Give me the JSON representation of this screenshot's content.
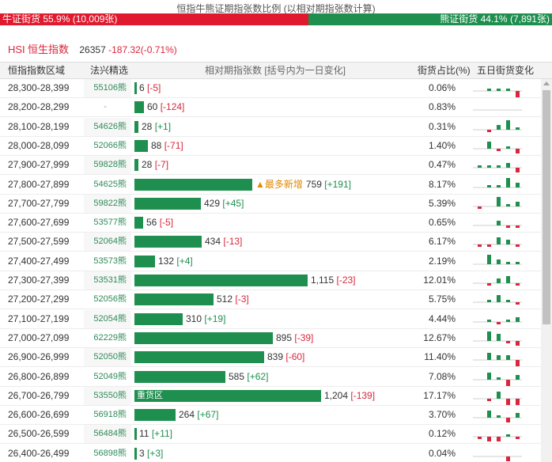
{
  "title": "恒指牛熊证期指张数比例 (以相对期指张数计算)",
  "ratio": {
    "bull": {
      "label": "牛证街货",
      "pct": "55.9%",
      "count": "(10,009张)",
      "fraction": 0.559,
      "color": "#e0192e"
    },
    "bear": {
      "label": "熊证街货",
      "pct": "44.1%",
      "count": "(7,891张)",
      "fraction": 0.441,
      "color": "#1e8f4e"
    }
  },
  "index": {
    "code": "HSI",
    "name": "恒生指数",
    "value": "26357",
    "change": "-187.32(-0.71%)"
  },
  "table": {
    "headers": {
      "range": "恒指指数区域",
      "issuer": "法兴精选",
      "bars": "相对期指张数 [括号内为一日变化]",
      "pct": "街货占比(%)",
      "change": "五日街货变化"
    },
    "bar_max": 1204,
    "rows": [
      {
        "range": "28,300-28,399",
        "issuer": "55106熊",
        "qty": 6,
        "qty_label": "6",
        "delta": "[-5]",
        "delta_sign": "neg",
        "pct": "0.06%",
        "spark": [
          0,
          1,
          1,
          1,
          -3
        ]
      },
      {
        "range": "28,200-28,299",
        "issuer": "-",
        "qty": 60,
        "qty_label": "60",
        "delta": "[-124]",
        "delta_sign": "neg",
        "pct": "0.83%",
        "spark": [
          0,
          0,
          0,
          0,
          0
        ]
      },
      {
        "range": "28,100-28,199",
        "issuer": "54626熊",
        "qty": 28,
        "qty_label": "28",
        "delta": "[+1]",
        "delta_sign": "pos",
        "pct": "0.31%",
        "spark": [
          0,
          -1,
          2,
          4,
          1
        ]
      },
      {
        "range": "28,000-28,099",
        "issuer": "52066熊",
        "qty": 88,
        "qty_label": "88",
        "delta": "[-71]",
        "delta_sign": "neg",
        "pct": "1.40%",
        "spark": [
          0,
          3,
          -1,
          1,
          -2
        ]
      },
      {
        "range": "27,900-27,999",
        "issuer": "59828熊",
        "qty": 28,
        "qty_label": "28",
        "delta": "[-7]",
        "delta_sign": "neg",
        "pct": "0.47%",
        "spark": [
          1,
          1,
          1,
          2,
          -2
        ]
      },
      {
        "range": "27,800-27,899",
        "issuer": "54625熊",
        "qty": 759,
        "qty_label": "759",
        "delta": "[+191]",
        "delta_sign": "pos",
        "pct": "8.17%",
        "spark": [
          0,
          1,
          1,
          4,
          2
        ],
        "tag": "▲最多新增"
      },
      {
        "range": "27,700-27,799",
        "issuer": "59822熊",
        "qty": 429,
        "qty_label": "429",
        "delta": "[+45]",
        "delta_sign": "pos",
        "pct": "5.39%",
        "spark": [
          -1,
          0,
          4,
          1,
          2
        ]
      },
      {
        "range": "27,600-27,699",
        "issuer": "53577熊",
        "qty": 56,
        "qty_label": "56",
        "delta": "[-5]",
        "delta_sign": "neg",
        "pct": "0.65%",
        "spark": [
          0,
          0,
          2,
          -1,
          -1
        ]
      },
      {
        "range": "27,500-27,599",
        "issuer": "52064熊",
        "qty": 434,
        "qty_label": "434",
        "delta": "[-13]",
        "delta_sign": "neg",
        "pct": "6.17%",
        "spark": [
          -1,
          -1,
          3,
          2,
          -1
        ]
      },
      {
        "range": "27,400-27,499",
        "issuer": "53573熊",
        "qty": 132,
        "qty_label": "132",
        "delta": "[+4]",
        "delta_sign": "pos",
        "pct": "2.19%",
        "spark": [
          0,
          4,
          2,
          1,
          1
        ]
      },
      {
        "range": "27,300-27,399",
        "issuer": "53531熊",
        "qty": 1115,
        "qty_label": "1,115",
        "delta": "[-23]",
        "delta_sign": "neg",
        "pct": "12.01%",
        "spark": [
          0,
          -1,
          2,
          3,
          -1
        ]
      },
      {
        "range": "27,200-27,299",
        "issuer": "52056熊",
        "qty": 512,
        "qty_label": "512",
        "delta": "[-3]",
        "delta_sign": "neg",
        "pct": "5.75%",
        "spark": [
          0,
          1,
          3,
          1,
          -1
        ]
      },
      {
        "range": "27,100-27,199",
        "issuer": "52054熊",
        "qty": 310,
        "qty_label": "310",
        "delta": "[+19]",
        "delta_sign": "pos",
        "pct": "4.44%",
        "spark": [
          0,
          1,
          -1,
          1,
          2
        ]
      },
      {
        "range": "27,000-27,099",
        "issuer": "62229熊",
        "qty": 895,
        "qty_label": "895",
        "delta": "[-39]",
        "delta_sign": "neg",
        "pct": "12.67%",
        "spark": [
          0,
          4,
          3,
          -1,
          -2
        ]
      },
      {
        "range": "26,900-26,999",
        "issuer": "52050熊",
        "qty": 839,
        "qty_label": "839",
        "delta": "[-60]",
        "delta_sign": "neg",
        "pct": "11.40%",
        "spark": [
          0,
          3,
          2,
          2,
          -3
        ]
      },
      {
        "range": "26,800-26,899",
        "issuer": "52049熊",
        "qty": 585,
        "qty_label": "585",
        "delta": "[+62]",
        "delta_sign": "pos",
        "pct": "7.08%",
        "spark": [
          0,
          3,
          1,
          -3,
          2
        ]
      },
      {
        "range": "26,700-26,799",
        "issuer": "53550熊",
        "qty": 1204,
        "qty_label": "1,204",
        "delta": "[-139]",
        "delta_sign": "neg",
        "pct": "17.17%",
        "spark": [
          0,
          -1,
          3,
          -4,
          -3
        ],
        "bar_text": "重货区"
      },
      {
        "range": "26,600-26,699",
        "issuer": "56918熊",
        "qty": 264,
        "qty_label": "264",
        "delta": "[+67]",
        "delta_sign": "pos",
        "pct": "3.70%",
        "spark": [
          0,
          3,
          1,
          -2,
          2
        ]
      },
      {
        "range": "26,500-26,599",
        "issuer": "56484熊",
        "qty": 11,
        "qty_label": "11",
        "delta": "[+11]",
        "delta_sign": "pos",
        "pct": "0.12%",
        "spark": [
          -1,
          -2,
          -2,
          1,
          -1
        ]
      },
      {
        "range": "26,400-26,499",
        "issuer": "56898熊",
        "qty": 3,
        "qty_label": "3",
        "delta": "[+3]",
        "delta_sign": "pos",
        "pct": "0.04%",
        "spark": [
          0,
          0,
          0,
          -2,
          0
        ]
      }
    ]
  },
  "colors": {
    "bull": "#e0192e",
    "bear": "#1e8f4e",
    "spark_pos": "#1e8f4e",
    "spark_neg": "#d9263c"
  }
}
